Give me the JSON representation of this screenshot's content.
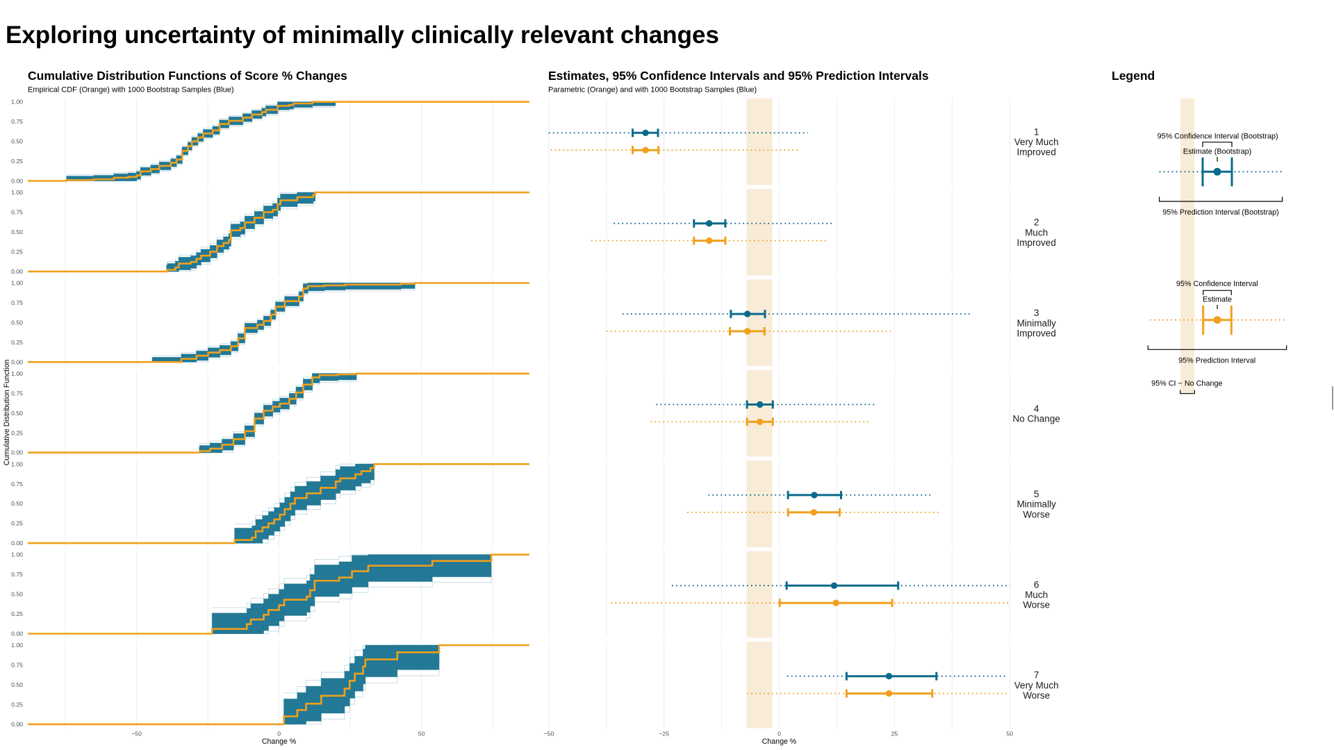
{
  "page": {
    "title": "Exploring uncertainty of minimally clinically relevant changes"
  },
  "panels": {
    "cdf": {
      "title": "Cumulative Distribution Functions of Score % Changes",
      "subtitle": "Empirical CDF (Orange) with 1000 Bootstrap Samples (Blue)"
    },
    "intervals": {
      "title": "Estimates, 95% Confidence Intervals and 95% Prediction Intervals",
      "subtitle": "Parametric (Orange) and with 1000 Bootstrap Samples (Blue)"
    },
    "legend": {
      "title": "Legend",
      "bootstrap": {
        "ci_label": "95% Confidence Interval (Bootstrap)",
        "estimate_label": "Estimate (Bootstrap)",
        "pi_label": "95% Prediction Interval (Bootstrap)"
      },
      "parametric": {
        "ci_label": "95% Confidence Interval",
        "estimate_label": "Estimate",
        "pi_label": "95% Prediction Interval"
      },
      "no_change_label": "95% CI − No Change"
    }
  },
  "colors": {
    "bootstrap": "#0b6a8b",
    "parametric": "#f0a01c",
    "no_change_band": "#f8ecd8",
    "grid": "#ebebeb",
    "axis_text": "#4d4d4d"
  },
  "chart_data": [
    {
      "type": "line",
      "title": "Cumulative Distribution Functions of Score % Changes",
      "subtitle": "Empirical CDF (Orange) with 1000 Bootstrap Samples (Blue)",
      "xlabel": "Change %",
      "ylabel": "Cumulative Distribution Function",
      "xlim": [
        -88.2,
        87.9
      ],
      "ylim": [
        0,
        1
      ],
      "x_ticks": [
        -50,
        0,
        50
      ],
      "x_tick_labels": [
        "−50",
        "0",
        "50"
      ],
      "x_grid": [
        -75,
        -50,
        -25,
        0,
        25,
        50,
        75
      ],
      "y_ticks": [
        0,
        0.25,
        0.5,
        0.75,
        1
      ],
      "y_tick_labels": [
        "0.00",
        "0.25",
        "0.50",
        "0.75",
        "1.00"
      ],
      "grid": true,
      "series": [
        {
          "name": "Empirical CDF",
          "color": "orange"
        },
        {
          "name": "1000 Bootstrap Samples",
          "color": "blue"
        }
      ],
      "facets": [
        {
          "group": 1,
          "label": "Very Much Improved",
          "ecdf": [
            [
              -74.6,
              0.01
            ],
            [
              -65,
              0.02
            ],
            [
              -58,
              0.04
            ],
            [
              -53,
              0.05
            ],
            [
              -50,
              0.07
            ],
            [
              -48.6,
              0.12
            ],
            [
              -45,
              0.15
            ],
            [
              -42,
              0.19
            ],
            [
              -38,
              0.23
            ],
            [
              -36,
              0.27
            ],
            [
              -34,
              0.38
            ],
            [
              -32,
              0.44
            ],
            [
              -30.6,
              0.5
            ],
            [
              -28.5,
              0.55
            ],
            [
              -26.6,
              0.6
            ],
            [
              -23.3,
              0.64
            ],
            [
              -20.9,
              0.72
            ],
            [
              -17.6,
              0.76
            ],
            [
              -12.7,
              0.8
            ],
            [
              -9.5,
              0.84
            ],
            [
              -6,
              0.87
            ],
            [
              -4.6,
              0.9
            ],
            [
              -0.5,
              0.95
            ],
            [
              3.6,
              0.96
            ],
            [
              5.1,
              0.98
            ],
            [
              11.7,
              1.0
            ]
          ],
          "bootstrap_band": {
            "x_range": [
              -74.6,
              19.8
            ],
            "halfwidth": 0.05
          }
        },
        {
          "group": 2,
          "label": "Much Improved",
          "ecdf": [
            [
              -39.2,
              0.02
            ],
            [
              -36.4,
              0.05
            ],
            [
              -35.2,
              0.1
            ],
            [
              -31,
              0.12
            ],
            [
              -29,
              0.16
            ],
            [
              -27.4,
              0.2
            ],
            [
              -24.2,
              0.25
            ],
            [
              -21.8,
              0.32
            ],
            [
              -19.5,
              0.36
            ],
            [
              -17.6,
              0.4
            ],
            [
              -16.9,
              0.52
            ],
            [
              -13.6,
              0.55
            ],
            [
              -12,
              0.62
            ],
            [
              -8.6,
              0.68
            ],
            [
              -5.4,
              0.75
            ],
            [
              -2.2,
              0.78
            ],
            [
              -0.5,
              0.85
            ],
            [
              0.5,
              0.9
            ],
            [
              6.4,
              0.94
            ],
            [
              12,
              0.97
            ],
            [
              12.7,
              1.0
            ]
          ],
          "bootstrap_band": {
            "x_range": [
              -39.5,
              12.7
            ],
            "halfwidth": 0.08
          }
        },
        {
          "group": 3,
          "label": "Minimally Improved",
          "ecdf": [
            [
              -34.3,
              0.04
            ],
            [
              -29,
              0.08
            ],
            [
              -24.9,
              0.12
            ],
            [
              -20.8,
              0.15
            ],
            [
              -16.9,
              0.2
            ],
            [
              -14.4,
              0.3
            ],
            [
              -12,
              0.43
            ],
            [
              -7.6,
              0.47
            ],
            [
              -5.4,
              0.52
            ],
            [
              -2.9,
              0.6
            ],
            [
              -1.2,
              0.7
            ],
            [
              2,
              0.77
            ],
            [
              7,
              0.83
            ],
            [
              8.5,
              0.93
            ],
            [
              10.1,
              0.96
            ],
            [
              15.9,
              0.97
            ],
            [
              23.2,
              0.98
            ],
            [
              42.8,
              0.99
            ],
            [
              47.7,
              1.0
            ]
          ],
          "bootstrap_band": {
            "x_range": [
              -44.5,
              47.7
            ],
            "halfwidth": 0.06
          }
        },
        {
          "group": 4,
          "label": "No Change",
          "ecdf": [
            [
              -27.8,
              0.02
            ],
            [
              -24.2,
              0.05
            ],
            [
              -20,
              0.1
            ],
            [
              -16,
              0.17
            ],
            [
              -12,
              0.27
            ],
            [
              -8.6,
              0.43
            ],
            [
              -5.4,
              0.53
            ],
            [
              -2.2,
              0.58
            ],
            [
              0.3,
              0.62
            ],
            [
              3.6,
              0.68
            ],
            [
              6,
              0.76
            ],
            [
              8.5,
              0.86
            ],
            [
              11.7,
              0.95
            ],
            [
              14.2,
              0.98
            ],
            [
              20.7,
              0.99
            ],
            [
              27.2,
              1.0
            ]
          ],
          "bootstrap_band": {
            "x_range": [
              -28.0,
              27.2
            ],
            "halfwidth": 0.07
          }
        },
        {
          "group": 5,
          "label": "Minimally Worse",
          "ecdf": [
            [
              -15.6,
              0.04
            ],
            [
              -9.5,
              0.07
            ],
            [
              -8.2,
              0.15
            ],
            [
              -5.8,
              0.2
            ],
            [
              -3.7,
              0.25
            ],
            [
              -1.7,
              0.3
            ],
            [
              0.3,
              0.36
            ],
            [
              2,
              0.43
            ],
            [
              4,
              0.5
            ],
            [
              5.6,
              0.57
            ],
            [
              9.7,
              0.63
            ],
            [
              14.6,
              0.7
            ],
            [
              19.9,
              0.78
            ],
            [
              21.5,
              0.82
            ],
            [
              26.8,
              0.87
            ],
            [
              28.9,
              0.91
            ],
            [
              32.1,
              0.95
            ],
            [
              33.4,
              1.0
            ]
          ],
          "bootstrap_band": {
            "x_range": [
              -15.6,
              33.4
            ],
            "halfwidth": 0.15
          }
        },
        {
          "group": 6,
          "label": "Much Worse",
          "ecdf": [
            [
              -23.5,
              0.06
            ],
            [
              -11.3,
              0.12
            ],
            [
              -9.9,
              0.18
            ],
            [
              -5.4,
              0.24
            ],
            [
              -3.7,
              0.3
            ],
            [
              0,
              0.36
            ],
            [
              1.8,
              0.43
            ],
            [
              9.7,
              0.47
            ],
            [
              10.9,
              0.55
            ],
            [
              12.5,
              0.67
            ],
            [
              21.1,
              0.71
            ],
            [
              25.6,
              0.79
            ],
            [
              31.3,
              0.86
            ],
            [
              53.8,
              0.92
            ],
            [
              74.5,
              1.0
            ]
          ],
          "bootstrap_band": {
            "x_range": [
              -23.5,
              74.5
            ],
            "halfwidth": 0.2
          }
        },
        {
          "group": 7,
          "label": "Very Much Worse",
          "ecdf": [
            [
              1.7,
              0.1
            ],
            [
              6.4,
              0.18
            ],
            [
              9.5,
              0.26
            ],
            [
              14.8,
              0.36
            ],
            [
              23,
              0.45
            ],
            [
              24.8,
              0.55
            ],
            [
              26.6,
              0.64
            ],
            [
              29.5,
              0.73
            ],
            [
              30.3,
              0.82
            ],
            [
              41.5,
              0.91
            ],
            [
              56.2,
              1.0
            ]
          ],
          "bootstrap_band": {
            "x_range": [
              1.7,
              56.2
            ],
            "halfwidth": 0.22
          }
        }
      ]
    },
    {
      "type": "errorbar",
      "title": "Estimates, 95% Confidence Intervals and 95% Prediction Intervals",
      "subtitle": "Parametric (Orange) and with 1000 Bootstrap Samples (Blue)",
      "xlabel": "Change %",
      "xlim": [
        -50,
        50
      ],
      "x_ticks": [
        -50,
        -25,
        0,
        25,
        50
      ],
      "x_tick_labels": [
        "−50",
        "−25",
        "0",
        "25",
        "50"
      ],
      "x_grid": [
        -50,
        -37.5,
        -25,
        -12.5,
        0,
        12.5,
        25,
        37.5,
        50
      ],
      "grid": true,
      "no_change_ci": [
        -7.1,
        -1.5
      ],
      "series": [
        {
          "key": "bootstrap",
          "name": "1000 Bootstrap Samples",
          "color": "blue"
        },
        {
          "key": "parametric",
          "name": "Parametric",
          "color": "orange"
        }
      ],
      "groups": [
        {
          "group": 1,
          "label_lines": [
            "1",
            "Very Much",
            "Improved"
          ],
          "bootstrap": {
            "estimate": -29.0,
            "ci": [
              -31.8,
              -26.3
            ],
            "pi": [
              -50.0,
              6.2
            ]
          },
          "parametric": {
            "estimate": -29.0,
            "ci": [
              -31.8,
              -26.2
            ],
            "pi": [
              -49.6,
              4.5
            ]
          }
        },
        {
          "group": 2,
          "label_lines": [
            "2",
            "Much",
            "Improved"
          ],
          "bootstrap": {
            "estimate": -15.2,
            "ci": [
              -18.5,
              -11.7
            ],
            "pi": [
              -35.9,
              11.4
            ]
          },
          "parametric": {
            "estimate": -15.2,
            "ci": [
              -18.5,
              -11.7
            ],
            "pi": [
              -40.8,
              10.5
            ]
          }
        },
        {
          "group": 3,
          "label_lines": [
            "3",
            "Minimally",
            "Improved"
          ],
          "bootstrap": {
            "estimate": -6.9,
            "ci": [
              -10.5,
              -3.1
            ],
            "pi": [
              -34.0,
              42.0
            ]
          },
          "parametric": {
            "estimate": -6.9,
            "ci": [
              -10.7,
              -3.2
            ],
            "pi": [
              -37.5,
              24.2
            ]
          }
        },
        {
          "group": 4,
          "label_lines": [
            "4",
            "No Change"
          ],
          "bootstrap": {
            "estimate": -4.2,
            "ci": [
              -7.0,
              -1.4
            ],
            "pi": [
              -26.7,
              20.8
            ]
          },
          "parametric": {
            "estimate": -4.2,
            "ci": [
              -7.0,
              -1.4
            ],
            "pi": [
              -27.9,
              19.4
            ]
          }
        },
        {
          "group": 5,
          "label_lines": [
            "5",
            "Minimally",
            "Worse"
          ],
          "bootstrap": {
            "estimate": 7.6,
            "ci": [
              1.9,
              13.4
            ],
            "pi": [
              -15.4,
              33.3
            ]
          },
          "parametric": {
            "estimate": 7.5,
            "ci": [
              1.9,
              13.1
            ],
            "pi": [
              -20.0,
              34.9
            ]
          }
        },
        {
          "group": 6,
          "label_lines": [
            "6",
            "Much",
            "Worse"
          ],
          "bootstrap": {
            "estimate": 11.9,
            "ci": [
              1.6,
              25.8
            ],
            "pi": [
              -23.3,
              50.0
            ]
          },
          "parametric": {
            "estimate": 12.3,
            "ci": [
              0.1,
              24.5
            ],
            "pi": [
              -36.5,
              50.0
            ]
          }
        },
        {
          "group": 7,
          "label_lines": [
            "7",
            "Very Much",
            "Worse"
          ],
          "bootstrap": {
            "estimate": 23.8,
            "ci": [
              14.6,
              34.1
            ],
            "pi": [
              1.7,
              49.3
            ]
          },
          "parametric": {
            "estimate": 23.8,
            "ci": [
              14.6,
              33.2
            ],
            "pi": [
              -7.0,
              49.3
            ]
          }
        }
      ]
    }
  ]
}
